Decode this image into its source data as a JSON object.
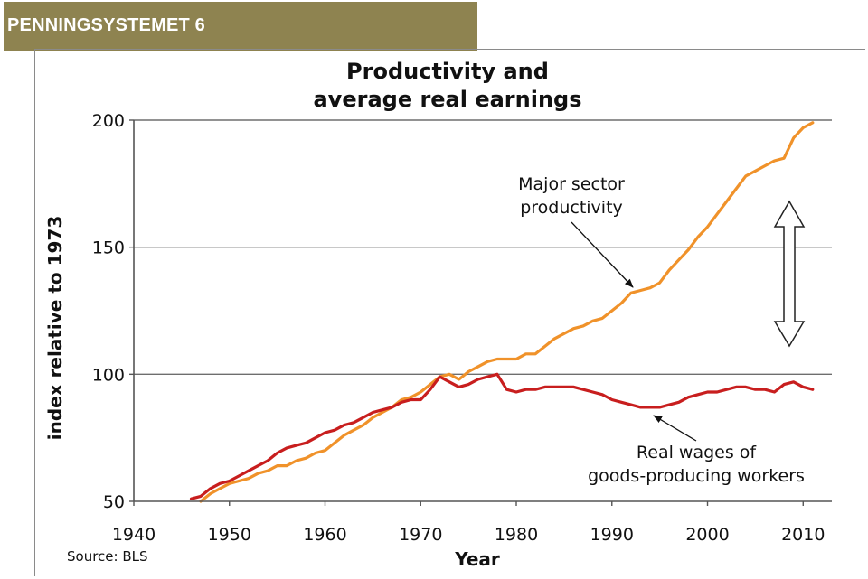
{
  "header": {
    "title": "PENNINGSYSTEMET 6"
  },
  "chart_data": {
    "type": "line",
    "title_lines": [
      "Productivity and",
      "average real earnings"
    ],
    "xlabel": "Year",
    "ylabel": "index relative to 1973",
    "xlim": [
      1940,
      2013
    ],
    "ylim": [
      50,
      200
    ],
    "x_ticks": [
      1940,
      1950,
      1960,
      1970,
      1980,
      1990,
      2000,
      2010
    ],
    "y_ticks": [
      50,
      100,
      150,
      200
    ],
    "gridlines_y": [
      100,
      150,
      200
    ],
    "source": "Source: BLS",
    "series": [
      {
        "name": "Major sector productivity",
        "color": "#f0922a",
        "x": [
          1947,
          1948,
          1949,
          1950,
          1951,
          1952,
          1953,
          1954,
          1955,
          1956,
          1957,
          1958,
          1959,
          1960,
          1961,
          1962,
          1963,
          1964,
          1965,
          1966,
          1967,
          1968,
          1969,
          1970,
          1971,
          1972,
          1973,
          1974,
          1975,
          1976,
          1977,
          1978,
          1979,
          1980,
          1981,
          1982,
          1983,
          1984,
          1985,
          1986,
          1987,
          1988,
          1989,
          1990,
          1991,
          1992,
          1993,
          1994,
          1995,
          1996,
          1997,
          1998,
          1999,
          2000,
          2001,
          2002,
          2003,
          2004,
          2005,
          2006,
          2007,
          2008,
          2009,
          2010,
          2011
        ],
        "y": [
          50,
          53,
          55,
          57,
          58,
          59,
          61,
          62,
          64,
          64,
          66,
          67,
          69,
          70,
          73,
          76,
          78,
          80,
          83,
          85,
          87,
          90,
          91,
          93,
          96,
          99,
          100,
          98,
          101,
          103,
          105,
          106,
          106,
          106,
          108,
          108,
          111,
          114,
          116,
          118,
          119,
          121,
          122,
          125,
          128,
          132,
          133,
          134,
          136,
          141,
          145,
          149,
          154,
          158,
          163,
          168,
          173,
          178,
          180,
          182,
          184,
          185,
          193,
          197,
          199
        ]
      },
      {
        "name": "Real wages of goods-producing workers",
        "color": "#c81e1e",
        "x": [
          1946,
          1947,
          1948,
          1949,
          1950,
          1951,
          1952,
          1953,
          1954,
          1955,
          1956,
          1957,
          1958,
          1959,
          1960,
          1961,
          1962,
          1963,
          1964,
          1965,
          1966,
          1967,
          1968,
          1969,
          1970,
          1971,
          1972,
          1973,
          1974,
          1975,
          1976,
          1977,
          1978,
          1979,
          1980,
          1981,
          1982,
          1983,
          1984,
          1985,
          1986,
          1987,
          1988,
          1989,
          1990,
          1991,
          1992,
          1993,
          1994,
          1995,
          1996,
          1997,
          1998,
          1999,
          2000,
          2001,
          2002,
          2003,
          2004,
          2005,
          2006,
          2007,
          2008,
          2009,
          2010,
          2011
        ],
        "y": [
          51,
          52,
          55,
          57,
          58,
          60,
          62,
          64,
          66,
          69,
          71,
          72,
          73,
          75,
          77,
          78,
          80,
          81,
          83,
          85,
          86,
          87,
          89,
          90,
          90,
          94,
          99,
          97,
          95,
          96,
          98,
          99,
          100,
          94,
          93,
          94,
          94,
          95,
          95,
          95,
          95,
          94,
          93,
          92,
          90,
          89,
          88,
          87,
          87,
          87,
          88,
          89,
          91,
          92,
          93,
          93,
          94,
          95,
          95,
          94,
          94,
          93,
          96,
          97,
          95,
          94
        ]
      }
    ],
    "annotations": [
      {
        "lines": [
          "Major sector",
          "productivity"
        ]
      },
      {
        "lines": [
          "Real wages of",
          "goods-producing workers"
        ]
      }
    ]
  }
}
